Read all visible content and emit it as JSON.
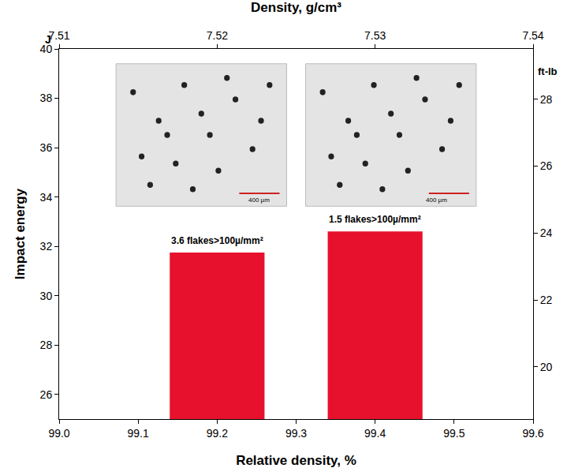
{
  "chart_data": {
    "type": "bar",
    "x_title": "Relative density, %",
    "y_title": "Impact energy",
    "y_unit": "J",
    "x2_title": "Density, g/cm³",
    "y2_unit": "ft-lb",
    "x": [
      99.2,
      99.4
    ],
    "values": [
      31.75,
      32.6
    ],
    "bar_labels": [
      "3.6 flakes>100µ/mm²",
      "1.5 flakes>100µ/mm²"
    ],
    "micrograph_scale_label": "400 µm",
    "color": "#e8112d",
    "xlim": [
      99.0,
      99.6
    ],
    "xticks": [
      {
        "value": 99.0,
        "label": "99.0"
      },
      99.1,
      99.2,
      99.3,
      99.4,
      99.5,
      99.6
    ],
    "ylim": [
      25,
      40
    ],
    "yticks": [
      26,
      28,
      30,
      32,
      34,
      36,
      38,
      40
    ],
    "x2lim": [
      7.51,
      7.54
    ],
    "x2ticks": [
      7.51,
      7.52,
      7.53,
      7.54
    ],
    "y2lim": [
      18.44,
      29.5
    ],
    "y2ticks": [
      20,
      22,
      24,
      26,
      28
    ],
    "grid": false
  }
}
